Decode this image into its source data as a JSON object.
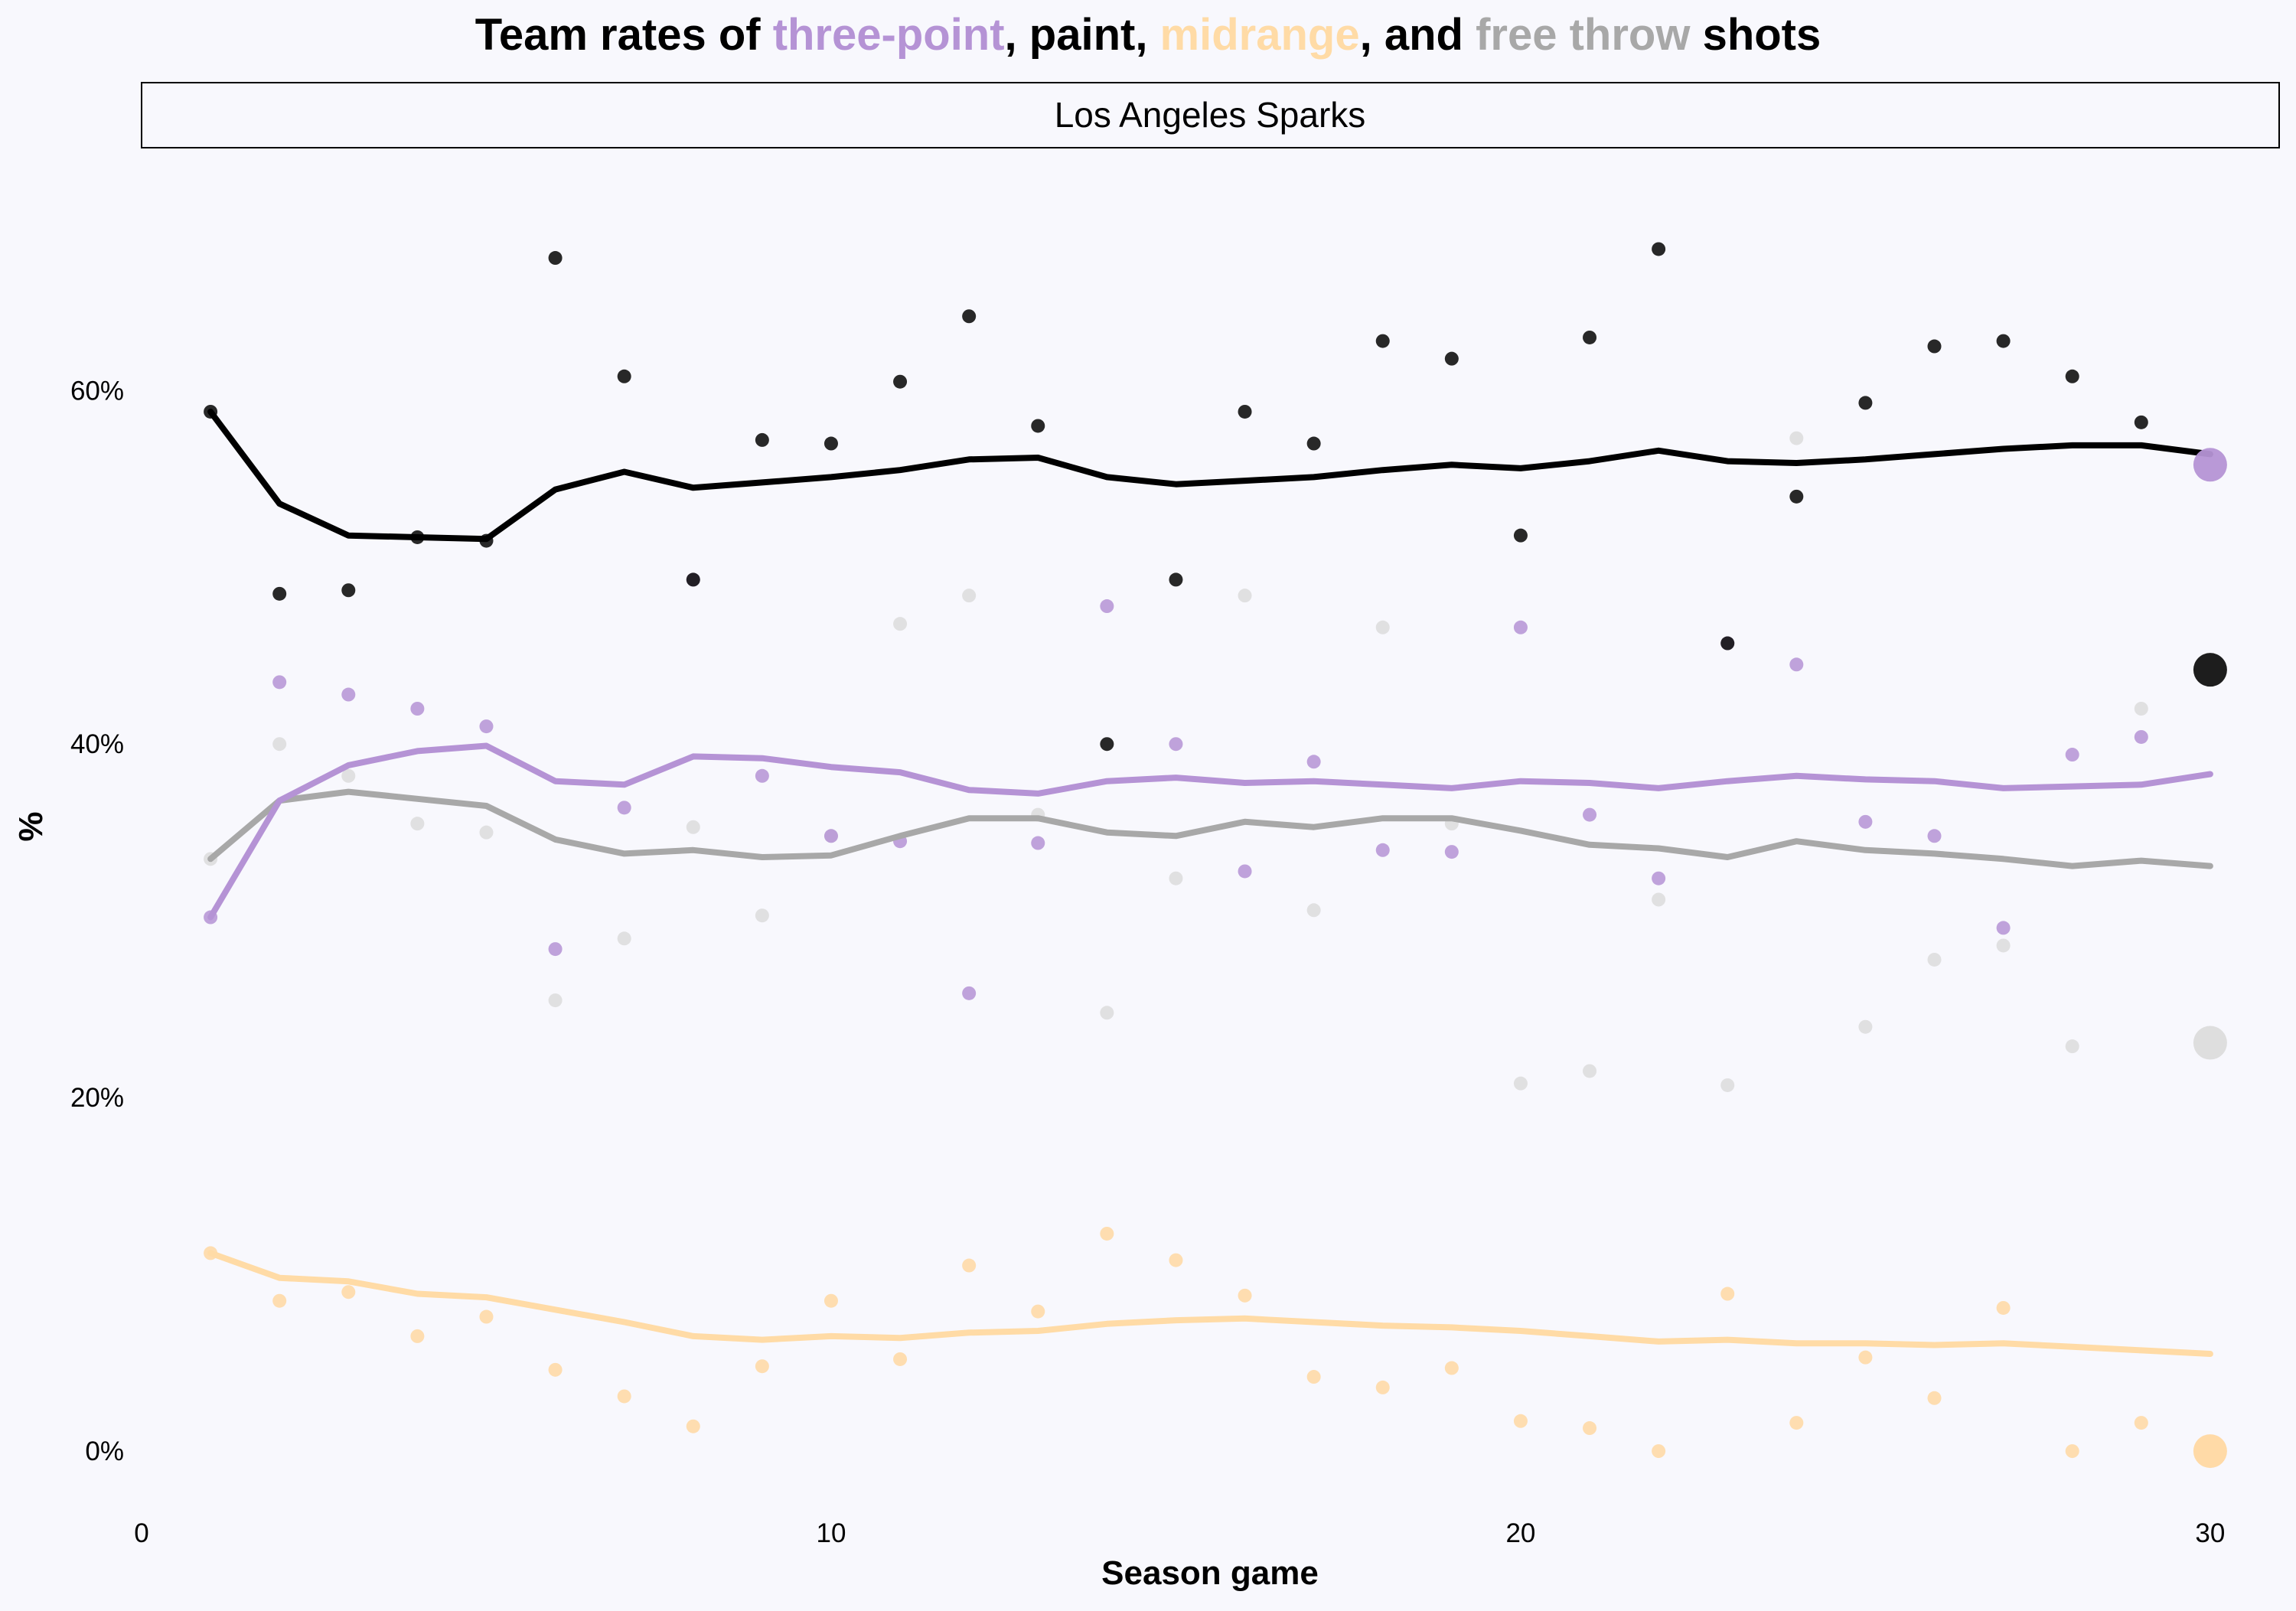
{
  "chart_data": {
    "type": "line",
    "title": {
      "parts": [
        {
          "text": "Team rates of ",
          "color": "#000000"
        },
        {
          "text": "three-point",
          "color": "#b593d5"
        },
        {
          "text": ", paint, ",
          "color": "#000000"
        },
        {
          "text": "midrange",
          "color": "#ffdba6"
        },
        {
          "text": ", and ",
          "color": "#000000"
        },
        {
          "text": "free throw",
          "color": "#a8a8a8"
        },
        {
          "text": " shots",
          "color": "#000000"
        }
      ]
    },
    "facet_label": "Los Angeles Sparks",
    "xlabel": "Season game",
    "ylabel": "%",
    "xlim": [
      0,
      31
    ],
    "ylim": [
      -4.5,
      73
    ],
    "x_ticks": [
      0,
      10,
      20,
      30
    ],
    "x_tick_labels": [
      "0",
      "10",
      "20",
      "30"
    ],
    "y_ticks": [
      0,
      20,
      40,
      60
    ],
    "y_tick_labels": [
      "0%",
      "20%",
      "40%",
      "60%"
    ],
    "grid": false,
    "legend": "none (series named by colored words in title)",
    "x": [
      1,
      2,
      3,
      4,
      5,
      6,
      7,
      8,
      9,
      10,
      11,
      12,
      13,
      14,
      15,
      16,
      17,
      18,
      19,
      20,
      21,
      22,
      23,
      24,
      25,
      26,
      27,
      28,
      29,
      30
    ],
    "series": [
      {
        "name": "paint",
        "color": "#000000",
        "point_color": "#111111",
        "values": [
          58.8,
          48.5,
          48.7,
          51.7,
          51.5,
          67.5,
          60.8,
          49.3,
          57.2,
          57.0,
          60.5,
          64.2,
          58.0,
          40.0,
          49.3,
          58.8,
          57.0,
          62.8,
          61.8,
          51.8,
          63.0,
          68.0,
          45.7,
          54.0,
          59.3,
          62.5,
          62.8,
          60.8,
          58.2,
          44.2
        ],
        "rolling_average": [
          58.8,
          53.6,
          51.8,
          51.7,
          51.6,
          54.4,
          55.4,
          54.5,
          54.8,
          55.1,
          55.5,
          56.1,
          56.2,
          55.1,
          54.7,
          54.9,
          55.1,
          55.5,
          55.8,
          55.6,
          56.0,
          56.6,
          56.0,
          55.9,
          56.1,
          56.4,
          56.7,
          56.9,
          56.9,
          56.4
        ]
      },
      {
        "name": "three-point",
        "color": "#b593d5",
        "point_color": "#b593d5",
        "values": [
          30.2,
          43.5,
          42.8,
          42.0,
          41.0,
          28.4,
          36.4,
          49.3,
          38.2,
          34.8,
          34.5,
          25.9,
          34.4,
          47.8,
          40.0,
          32.8,
          39.0,
          34.0,
          33.9,
          46.6,
          36.0,
          32.4,
          45.7,
          44.5,
          35.6,
          34.8,
          29.6,
          39.4,
          40.4,
          55.8
        ],
        "rolling_average": [
          30.2,
          36.8,
          38.8,
          39.6,
          39.9,
          37.9,
          37.7,
          39.3,
          39.2,
          38.7,
          38.4,
          37.4,
          37.2,
          37.9,
          38.1,
          37.8,
          37.9,
          37.7,
          37.5,
          37.9,
          37.8,
          37.5,
          37.9,
          38.2,
          38.0,
          37.9,
          37.5,
          37.6,
          37.7,
          38.3
        ]
      },
      {
        "name": "free throw",
        "color": "#a8a8a8",
        "point_color": "#dcdcdc",
        "values": [
          33.5,
          40.0,
          38.2,
          35.5,
          35.0,
          25.5,
          29.0,
          35.3,
          30.3,
          34.8,
          46.8,
          48.4,
          36.0,
          24.8,
          32.4,
          48.4,
          30.6,
          46.6,
          35.5,
          20.8,
          21.5,
          31.2,
          20.7,
          57.3,
          24.0,
          27.8,
          28.6,
          22.9,
          42.0,
          23.1
        ],
        "rolling_average": [
          33.5,
          36.8,
          37.3,
          36.9,
          36.5,
          34.6,
          33.8,
          34.0,
          33.6,
          33.7,
          34.8,
          35.8,
          35.8,
          35.0,
          34.8,
          35.6,
          35.3,
          35.8,
          35.8,
          35.1,
          34.3,
          34.1,
          33.6,
          34.5,
          34.0,
          33.8,
          33.5,
          33.1,
          33.4,
          33.1
        ]
      },
      {
        "name": "midrange",
        "color": "#ffdba6",
        "point_color": "#ffd8a2",
        "values": [
          11.2,
          8.5,
          9.0,
          6.5,
          7.6,
          4.6,
          3.1,
          1.4,
          4.8,
          8.5,
          5.2,
          10.5,
          7.9,
          12.3,
          10.8,
          8.8,
          4.2,
          3.6,
          4.7,
          1.7,
          1.3,
          0.0,
          8.9,
          1.6,
          5.3,
          3.0,
          8.1,
          0.0,
          1.6,
          0.0
        ],
        "rolling_average": [
          11.2,
          9.8,
          9.6,
          8.9,
          8.7,
          8.0,
          7.3,
          6.5,
          6.3,
          6.5,
          6.4,
          6.7,
          6.8,
          7.2,
          7.4,
          7.5,
          7.3,
          7.1,
          7.0,
          6.8,
          6.5,
          6.2,
          6.3,
          6.1,
          6.1,
          6.0,
          6.1,
          5.9,
          5.7,
          5.5
        ]
      }
    ]
  }
}
